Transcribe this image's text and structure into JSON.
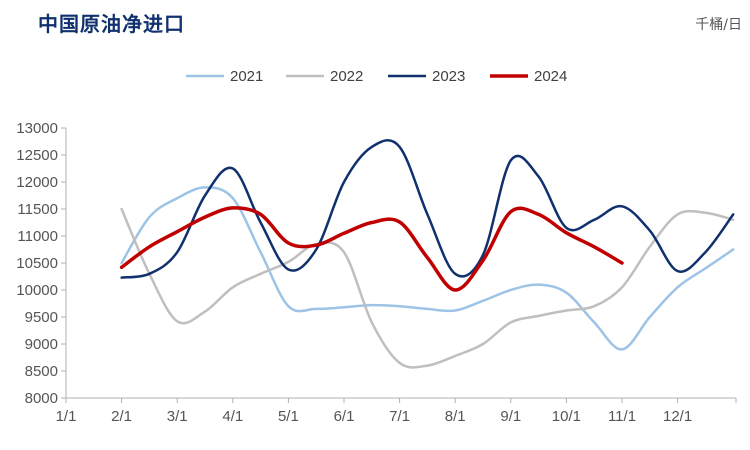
{
  "title": "中国原油净进口",
  "unit": "千桶/日",
  "chart_data": {
    "type": "line",
    "title": "中国原油净进口",
    "ylabel": "千桶/日",
    "categories": [
      "1/1",
      "2/1",
      "3/1",
      "4/1",
      "5/1",
      "6/1",
      "7/1",
      "8/1",
      "9/1",
      "10/1",
      "11/1",
      "12/1"
    ],
    "ylim": [
      8000,
      13000
    ],
    "yticks": [
      8000,
      8500,
      9000,
      9500,
      10000,
      10500,
      11000,
      11500,
      12000,
      12500,
      13000
    ],
    "grid": false,
    "legend_position": "top",
    "series": [
      {
        "name": "2021",
        "color": "#9dc3e6",
        "width": 2.5,
        "points": [
          [
            1,
            10500
          ],
          [
            1.5,
            11350
          ],
          [
            2,
            11700
          ],
          [
            2.5,
            11900
          ],
          [
            3,
            11700
          ],
          [
            3.5,
            10700
          ],
          [
            4,
            9700
          ],
          [
            4.5,
            9650
          ],
          [
            5,
            9680
          ],
          [
            5.5,
            9720
          ],
          [
            6,
            9700
          ],
          [
            6.5,
            9650
          ],
          [
            7,
            9620
          ],
          [
            7.5,
            9800
          ],
          [
            8,
            10000
          ],
          [
            8.5,
            10100
          ],
          [
            9,
            9950
          ],
          [
            9.5,
            9400
          ],
          [
            10,
            8900
          ],
          [
            10.5,
            9500
          ],
          [
            11,
            10050
          ],
          [
            11.5,
            10400
          ],
          [
            12,
            10750
          ]
        ]
      },
      {
        "name": "2022",
        "color": "#bfbfbf",
        "width": 2.5,
        "points": [
          [
            1,
            11500
          ],
          [
            1.5,
            10300
          ],
          [
            2,
            9420
          ],
          [
            2.5,
            9600
          ],
          [
            3,
            10050
          ],
          [
            3.5,
            10300
          ],
          [
            4,
            10520
          ],
          [
            4.5,
            10850
          ],
          [
            5,
            10700
          ],
          [
            5.5,
            9400
          ],
          [
            6,
            8650
          ],
          [
            6.5,
            8600
          ],
          [
            7,
            8780
          ],
          [
            7.5,
            9000
          ],
          [
            8,
            9400
          ],
          [
            8.5,
            9520
          ],
          [
            9,
            9620
          ],
          [
            9.5,
            9700
          ],
          [
            10,
            10050
          ],
          [
            10.5,
            10800
          ],
          [
            11,
            11400
          ],
          [
            11.5,
            11430
          ],
          [
            12,
            11300
          ]
        ]
      },
      {
        "name": "2023",
        "color": "#10306e",
        "width": 2.5,
        "points": [
          [
            1,
            10230
          ],
          [
            1.5,
            10300
          ],
          [
            2,
            10700
          ],
          [
            2.5,
            11750
          ],
          [
            3,
            12250
          ],
          [
            3.5,
            11250
          ],
          [
            4,
            10380
          ],
          [
            4.5,
            10750
          ],
          [
            5,
            12000
          ],
          [
            5.5,
            12650
          ],
          [
            6,
            12650
          ],
          [
            6.5,
            11400
          ],
          [
            7,
            10300
          ],
          [
            7.5,
            10650
          ],
          [
            8,
            12400
          ],
          [
            8.5,
            12100
          ],
          [
            9,
            11150
          ],
          [
            9.5,
            11300
          ],
          [
            10,
            11550
          ],
          [
            10.5,
            11100
          ],
          [
            11,
            10350
          ],
          [
            11.5,
            10700
          ],
          [
            12,
            11400
          ]
        ]
      },
      {
        "name": "2024",
        "color": "#c00000",
        "width": 3.5,
        "points": [
          [
            1,
            10420
          ],
          [
            1.5,
            10800
          ],
          [
            2,
            11080
          ],
          [
            2.5,
            11350
          ],
          [
            3,
            11520
          ],
          [
            3.5,
            11400
          ],
          [
            4,
            10870
          ],
          [
            4.5,
            10830
          ],
          [
            5,
            11050
          ],
          [
            5.5,
            11250
          ],
          [
            6,
            11260
          ],
          [
            6.5,
            10600
          ],
          [
            7,
            10000
          ],
          [
            7.5,
            10550
          ],
          [
            8,
            11450
          ],
          [
            8.5,
            11400
          ],
          [
            9,
            11060
          ],
          [
            9.5,
            10800
          ],
          [
            10,
            10500
          ]
        ]
      }
    ]
  }
}
